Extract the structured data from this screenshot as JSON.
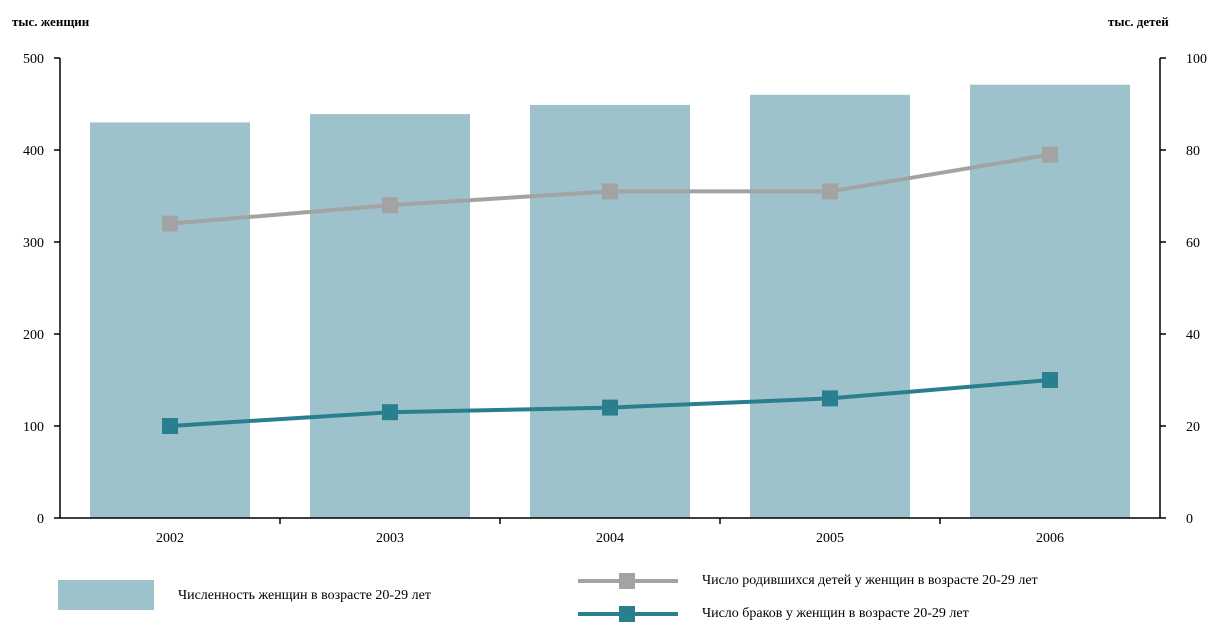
{
  "chart_data": {
    "type": "bar+line",
    "categories": [
      "2002",
      "2003",
      "2004",
      "2005",
      "2006"
    ],
    "y_left": {
      "label": "тыс. женщин",
      "range": [
        0,
        500
      ],
      "ticks": [
        "0",
        "100",
        "200",
        "300",
        "400",
        "500"
      ]
    },
    "y_right": {
      "label": "тыс. детей",
      "range": [
        0,
        100
      ],
      "ticks": [
        "0",
        "20",
        "40",
        "60",
        "80",
        "100"
      ]
    },
    "series": [
      {
        "name": "Численность женщин в возрасте 20-29 лет",
        "type": "bar",
        "axis": "left",
        "values": [
          430,
          439,
          449,
          460,
          471
        ],
        "color": "#9ec2cb"
      },
      {
        "name": "Число родившихся детей у женщин в возрасте 20-29 лет",
        "type": "line",
        "axis": "right",
        "values": [
          64,
          68,
          71,
          71,
          79
        ],
        "color": "#a3a3a3"
      },
      {
        "name": "Число браков у женщин в возрасте 20-29 лет",
        "type": "line",
        "axis": "right",
        "values": [
          20,
          23,
          24,
          26,
          30
        ],
        "color": "#2a7f8f"
      }
    ],
    "grid": false,
    "legend_position": "bottom"
  }
}
